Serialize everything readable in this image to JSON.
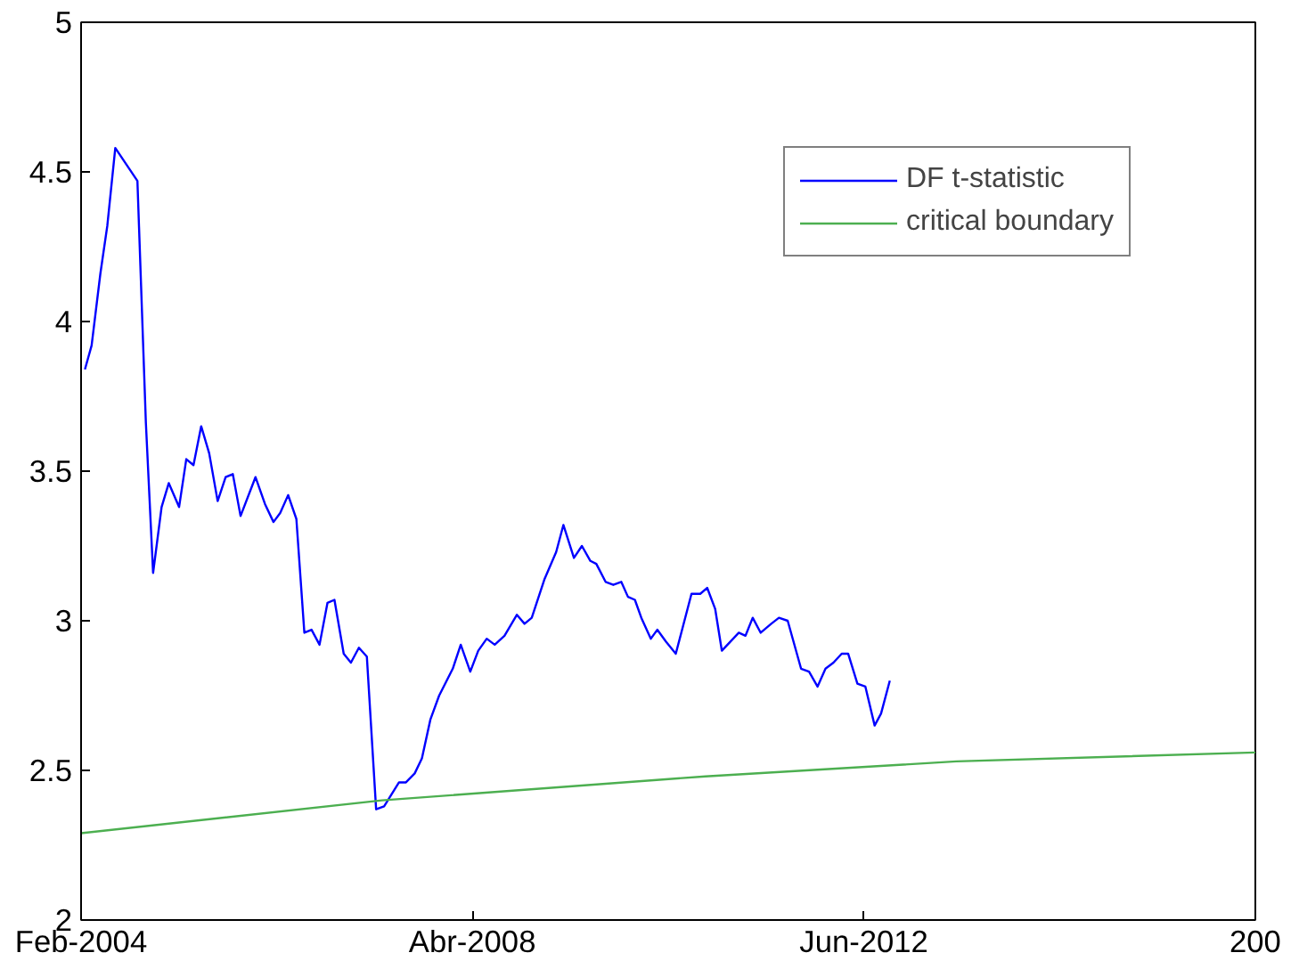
{
  "chart_data": {
    "type": "line",
    "xlim": [
      "2004-02",
      "2016-08"
    ],
    "ylim": [
      2,
      5
    ],
    "xticks": [
      {
        "value": "2004-02",
        "label": "Feb-2004"
      },
      {
        "value": "2008-04",
        "label": "Abr-2008"
      },
      {
        "value": "2012-06",
        "label": "Jun-2012"
      },
      {
        "value": "2016-08",
        "label": "200"
      }
    ],
    "yticks": [
      2,
      2.5,
      3,
      3.5,
      4,
      4.5,
      5
    ],
    "grid": false,
    "legend": "top right",
    "marker": "none",
    "line_style": "solid",
    "series": [
      {
        "name": "DF t-statistic",
        "color": "#0000ff",
        "x": [
          "2004-02-16",
          "2004-03-13",
          "2004-04-16",
          "2004-05-13",
          "2004-06-13",
          "2004-09-07",
          "2004-10-10",
          "2004-11-07",
          "2004-12-10",
          "2005-01-07",
          "2005-02-16",
          "2005-03-16",
          "2005-04-13",
          "2005-05-13",
          "2005-06-13",
          "2005-07-16",
          "2005-08-16",
          "2005-09-13",
          "2005-10-13",
          "2005-12-10",
          "2006-01-16",
          "2006-02-18",
          "2006-03-16",
          "2006-04-16",
          "2006-05-18",
          "2006-06-18",
          "2006-07-16",
          "2006-08-16",
          "2006-09-16",
          "2006-10-13",
          "2006-11-18",
          "2006-12-16",
          "2007-01-16",
          "2007-02-16",
          "2007-03-24",
          "2007-04-24",
          "2007-06-21",
          "2007-07-18",
          "2007-08-21",
          "2007-09-18",
          "2007-10-21",
          "2007-11-24",
          "2008-01-16",
          "2008-02-16",
          "2008-03-24",
          "2008-04-24",
          "2008-05-27",
          "2008-06-27",
          "2008-08-04",
          "2008-09-21",
          "2008-10-21",
          "2008-11-18",
          "2009-01-07",
          "2009-02-21",
          "2009-03-21",
          "2009-05-01",
          "2009-06-01",
          "2009-07-04",
          "2009-07-27",
          "2009-09-01",
          "2009-10-01",
          "2009-11-01",
          "2009-11-27",
          "2009-12-24",
          "2010-01-18",
          "2010-02-24",
          "2010-03-21",
          "2010-04-24",
          "2010-06-01",
          "2010-08-01",
          "2010-09-04",
          "2010-10-01",
          "2010-11-01",
          "2010-11-27",
          "2011-02-01",
          "2011-02-27",
          "2011-03-27",
          "2011-04-27",
          "2011-06-07",
          "2011-07-07",
          "2011-08-10",
          "2011-10-01",
          "2011-11-01",
          "2011-12-04",
          "2012-01-04",
          "2012-02-04",
          "2012-03-07",
          "2012-04-01",
          "2012-05-07",
          "2012-06-07",
          "2012-07-13",
          "2012-08-07",
          "2012-09-10"
        ],
        "values": [
          3.84,
          3.92,
          4.16,
          4.32,
          4.58,
          4.47,
          3.66,
          3.16,
          3.38,
          3.46,
          3.38,
          3.54,
          3.52,
          3.65,
          3.56,
          3.4,
          3.48,
          3.49,
          3.35,
          3.48,
          3.39,
          3.33,
          3.36,
          3.42,
          3.34,
          2.96,
          2.97,
          2.92,
          3.06,
          3.07,
          2.89,
          2.86,
          2.91,
          2.88,
          2.37,
          2.38,
          2.46,
          2.46,
          2.49,
          2.54,
          2.67,
          2.75,
          2.84,
          2.92,
          2.83,
          2.9,
          2.94,
          2.92,
          2.95,
          3.02,
          2.99,
          3.01,
          3.14,
          3.23,
          3.32,
          3.21,
          3.25,
          3.2,
          3.19,
          3.13,
          3.12,
          3.13,
          3.08,
          3.07,
          3.01,
          2.94,
          2.97,
          2.93,
          2.89,
          3.09,
          3.09,
          3.11,
          3.04,
          2.9,
          2.96,
          2.95,
          3.01,
          2.96,
          2.99,
          3.01,
          3.0,
          2.84,
          2.83,
          2.78,
          2.84,
          2.86,
          2.89,
          2.89,
          2.79,
          2.78,
          2.65,
          2.69,
          2.8
        ]
      },
      {
        "name": "critical boundary",
        "color": "#4caf50",
        "x": [
          "2004-02-01",
          "2007-04-16",
          "2010-09-24",
          "2013-05-27",
          "2016-08-01"
        ],
        "values": [
          2.29,
          2.4,
          2.48,
          2.53,
          2.56
        ]
      }
    ]
  }
}
